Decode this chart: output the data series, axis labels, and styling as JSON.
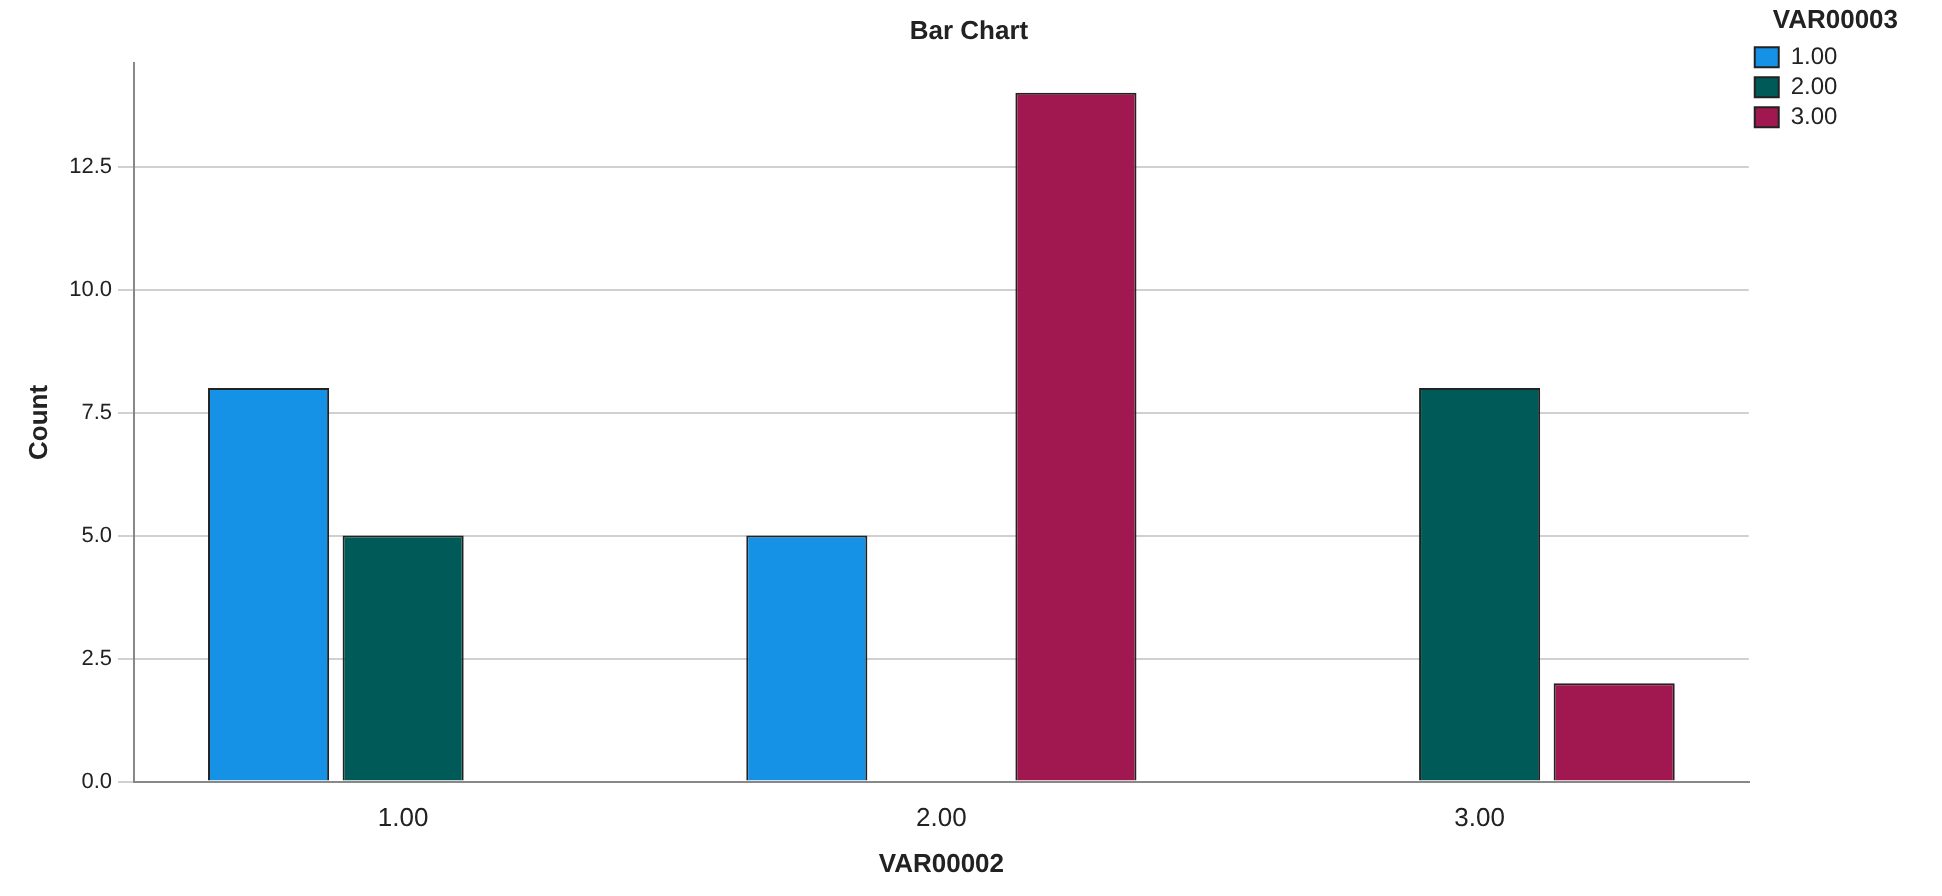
{
  "chart_data": {
    "type": "bar",
    "title": "Bar Chart",
    "xlabel": "VAR00002",
    "ylabel": "Count",
    "legend_title": "VAR00003",
    "categories": [
      "1.00",
      "2.00",
      "3.00"
    ],
    "series": [
      {
        "name": "1.00",
        "color": "#1591e6",
        "values": [
          8,
          5,
          null
        ]
      },
      {
        "name": "2.00",
        "color": "#005b58",
        "values": [
          5,
          null,
          8
        ]
      },
      {
        "name": "3.00",
        "color": "#a0184f",
        "values": [
          null,
          14,
          2
        ]
      }
    ],
    "ylim": [
      0,
      14.6
    ],
    "yticks": [
      {
        "value": 0,
        "label": "0.0"
      },
      {
        "value": 2.5,
        "label": "2.5"
      },
      {
        "value": 5,
        "label": "5.0"
      },
      {
        "value": 7.5,
        "label": "7.5"
      },
      {
        "value": 10,
        "label": "10.0"
      },
      {
        "value": 12.5,
        "label": "12.5"
      }
    ],
    "grid": "y",
    "legend": "top right"
  }
}
